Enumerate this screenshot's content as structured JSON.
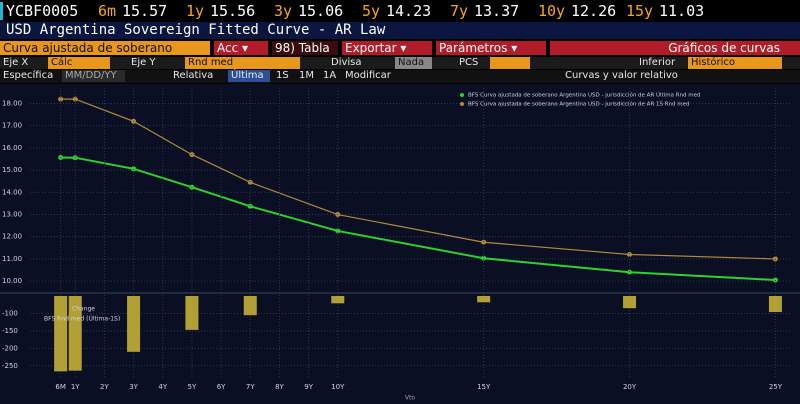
{
  "header": {
    "ticker": "YCBF0005",
    "quotes": [
      {
        "tenor": "6m",
        "value": 15.57
      },
      {
        "tenor": "1y",
        "value": 15.56
      },
      {
        "tenor": "3y",
        "value": 15.06
      },
      {
        "tenor": "5y",
        "value": 14.23
      },
      {
        "tenor": "7y",
        "value": 13.37
      },
      {
        "tenor": "10y",
        "value": 12.26
      },
      {
        "tenor": "15y",
        "value": 11.03
      }
    ],
    "title": "USD Argentina Sovereign Fitted Curve - AR Law"
  },
  "toolbar": {
    "curve": "Curva ajustada de soberano",
    "menus": [
      "Acc ▾",
      "98) Tabla",
      "Exportar ▾",
      "Parámetros ▾"
    ],
    "panel": "Gráficos de curvas"
  },
  "settings": {
    "x_axis_label": "Eje X",
    "x_axis_value": "Cálc",
    "y_axis_label": "Eje Y",
    "y_axis_value": "Rnd med",
    "currency_label": "Divisa",
    "currency_value": "Nada",
    "pcs_label": "PCS",
    "lower_label": "Inferior",
    "lower_value": "Histórico"
  },
  "view": {
    "specific": "Específica",
    "date": "MM/DD/YY",
    "relative": "Relativa",
    "periods": [
      "Última",
      "1S",
      "1M",
      "1A"
    ],
    "modify": "Modificar",
    "view": "Curvas y valor relativo"
  },
  "chart_data": [
    {
      "type": "line",
      "x": [
        0.5,
        1,
        3,
        5,
        7,
        10,
        15,
        20,
        25
      ],
      "series": [
        {
          "name": "BFS Curva ajustada de soberano Argentina USD - jurisdicción de AR Última Rnd med",
          "color": "#2fd12f",
          "values": [
            15.57,
            15.56,
            15.06,
            14.23,
            13.37,
            12.26,
            11.03,
            10.4,
            10.05
          ]
        },
        {
          "name": "BFS Curva ajustada de soberano Argentina USD - jurisdicción de AR 1S Rnd med",
          "color": "#b08a3a",
          "values": [
            18.2,
            18.2,
            17.2,
            15.7,
            14.45,
            13.0,
            11.75,
            11.2,
            11.0
          ]
        }
      ],
      "xlim": [
        -0.55,
        25.5
      ],
      "ylim": [
        9.6,
        18.7
      ],
      "yticks": [
        {
          "value": 10,
          "label": "10.00"
        },
        {
          "value": 11,
          "label": "11.00"
        },
        {
          "value": 12,
          "label": "12.00"
        },
        {
          "value": 13,
          "label": "13.00"
        },
        {
          "value": 14,
          "label": "14.00"
        },
        {
          "value": 15,
          "label": "15.00"
        },
        {
          "value": 16,
          "label": "16.00"
        },
        {
          "value": 17,
          "label": "17.00"
        },
        {
          "value": 18,
          "label": "18.00"
        }
      ],
      "grid": true
    },
    {
      "type": "bar",
      "title": "Change",
      "x": [
        0.5,
        1,
        3,
        5,
        7,
        10,
        15,
        20,
        25
      ],
      "series": [
        {
          "name": "BFS Rnd med (Última-1S)",
          "color": "#b3a034",
          "values": [
            -266,
            -264,
            -210,
            -147,
            -105,
            -71,
            -68,
            -85,
            -96
          ]
        }
      ],
      "xlim": [
        -0.55,
        25.5
      ],
      "xticks": [
        {
          "value": 0.5,
          "label": "6M"
        },
        {
          "value": 1,
          "label": "1Y"
        },
        {
          "value": 2,
          "label": "2Y"
        },
        {
          "value": 3,
          "label": "3Y"
        },
        {
          "value": 4,
          "label": "4Y"
        },
        {
          "value": 5,
          "label": "5Y"
        },
        {
          "value": 6,
          "label": "6Y"
        },
        {
          "value": 7,
          "label": "7Y"
        },
        {
          "value": 8,
          "label": "8Y"
        },
        {
          "value": 9,
          "label": "9Y"
        },
        {
          "value": 10,
          "label": "10Y"
        },
        {
          "value": 15,
          "label": "15Y"
        },
        {
          "value": 20,
          "label": "20Y"
        },
        {
          "value": 25,
          "label": "25Y"
        }
      ],
      "x_label": "Vto",
      "ylim": [
        -285,
        -50
      ],
      "yticks": [
        -100,
        -150,
        -200,
        -250
      ],
      "grid": true
    }
  ]
}
